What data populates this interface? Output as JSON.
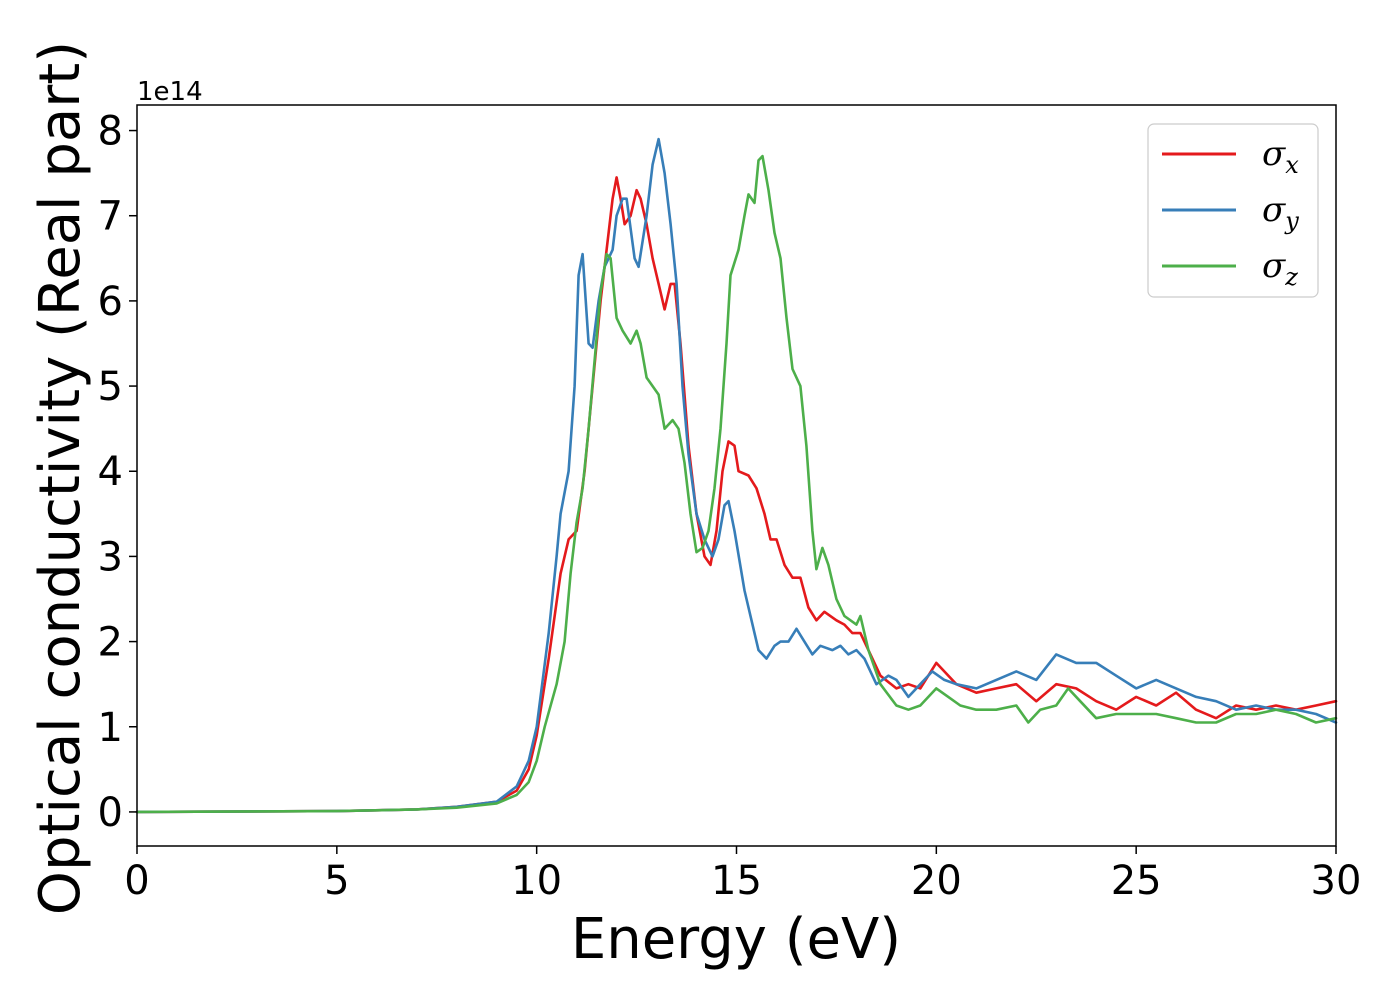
{
  "chart_data": {
    "type": "line",
    "title": "",
    "xlabel": "Energy (eV)",
    "ylabel": "Optical conductivity (Real part)",
    "y_offset_label": "1e14",
    "xlim": [
      0,
      30
    ],
    "ylim": [
      -0.4,
      8.3
    ],
    "xticks": [
      0,
      5,
      10,
      15,
      20,
      25,
      30
    ],
    "xtick_labels": [
      "0",
      "5",
      "10",
      "15",
      "20",
      "25",
      "30"
    ],
    "yticks": [
      0,
      1,
      2,
      3,
      4,
      5,
      6,
      7,
      8
    ],
    "ytick_labels": [
      "0",
      "1",
      "2",
      "3",
      "4",
      "5",
      "6",
      "7",
      "8"
    ],
    "grid": false,
    "legend_position": "top-right",
    "series": [
      {
        "name": "σx",
        "legend_symbol": "σ",
        "legend_subscript": "x",
        "color": "#e41a1c",
        "points": [
          [
            0,
            0
          ],
          [
            5,
            0.01
          ],
          [
            7,
            0.03
          ],
          [
            8,
            0.06
          ],
          [
            9,
            0.12
          ],
          [
            9.5,
            0.25
          ],
          [
            9.8,
            0.5
          ],
          [
            10,
            0.9
          ],
          [
            10.3,
            1.8
          ],
          [
            10.6,
            2.8
          ],
          [
            10.8,
            3.2
          ],
          [
            11,
            3.3
          ],
          [
            11.2,
            4.0
          ],
          [
            11.4,
            5.0
          ],
          [
            11.6,
            6.0
          ],
          [
            11.8,
            6.8
          ],
          [
            11.9,
            7.2
          ],
          [
            12,
            7.45
          ],
          [
            12.1,
            7.2
          ],
          [
            12.2,
            6.9
          ],
          [
            12.35,
            7.0
          ],
          [
            12.5,
            7.3
          ],
          [
            12.6,
            7.2
          ],
          [
            12.75,
            6.9
          ],
          [
            12.9,
            6.5
          ],
          [
            13,
            6.3
          ],
          [
            13.2,
            5.9
          ],
          [
            13.35,
            6.2
          ],
          [
            13.45,
            6.2
          ],
          [
            13.6,
            5.5
          ],
          [
            13.8,
            4.3
          ],
          [
            14,
            3.5
          ],
          [
            14.2,
            3.0
          ],
          [
            14.35,
            2.9
          ],
          [
            14.5,
            3.3
          ],
          [
            14.65,
            4.0
          ],
          [
            14.8,
            4.35
          ],
          [
            14.95,
            4.3
          ],
          [
            15.05,
            4.0
          ],
          [
            15.3,
            3.95
          ],
          [
            15.5,
            3.8
          ],
          [
            15.7,
            3.5
          ],
          [
            15.85,
            3.2
          ],
          [
            16,
            3.2
          ],
          [
            16.2,
            2.9
          ],
          [
            16.4,
            2.75
          ],
          [
            16.6,
            2.75
          ],
          [
            16.8,
            2.4
          ],
          [
            17,
            2.25
          ],
          [
            17.2,
            2.35
          ],
          [
            17.5,
            2.25
          ],
          [
            17.7,
            2.2
          ],
          [
            17.9,
            2.1
          ],
          [
            18.1,
            2.1
          ],
          [
            18.3,
            1.9
          ],
          [
            18.6,
            1.6
          ],
          [
            19,
            1.45
          ],
          [
            19.3,
            1.5
          ],
          [
            19.6,
            1.45
          ],
          [
            19.8,
            1.6
          ],
          [
            20,
            1.75
          ],
          [
            20.2,
            1.65
          ],
          [
            20.5,
            1.5
          ],
          [
            21,
            1.4
          ],
          [
            21.5,
            1.45
          ],
          [
            22,
            1.5
          ],
          [
            22.5,
            1.3
          ],
          [
            23,
            1.5
          ],
          [
            23.5,
            1.45
          ],
          [
            24,
            1.3
          ],
          [
            24.5,
            1.2
          ],
          [
            25,
            1.35
          ],
          [
            25.5,
            1.25
          ],
          [
            26,
            1.4
          ],
          [
            26.5,
            1.2
          ],
          [
            27,
            1.1
          ],
          [
            27.5,
            1.25
          ],
          [
            28,
            1.2
          ],
          [
            28.5,
            1.25
          ],
          [
            29,
            1.2
          ],
          [
            29.5,
            1.25
          ],
          [
            30,
            1.3
          ]
        ]
      },
      {
        "name": "σy",
        "legend_symbol": "σ",
        "legend_subscript": "y",
        "color": "#377eb8",
        "points": [
          [
            0,
            0
          ],
          [
            5,
            0.01
          ],
          [
            7,
            0.03
          ],
          [
            8,
            0.06
          ],
          [
            9,
            0.12
          ],
          [
            9.5,
            0.3
          ],
          [
            9.8,
            0.6
          ],
          [
            10,
            1.0
          ],
          [
            10.3,
            2.1
          ],
          [
            10.5,
            3.0
          ],
          [
            10.6,
            3.5
          ],
          [
            10.8,
            4.0
          ],
          [
            10.95,
            5.0
          ],
          [
            11.05,
            6.3
          ],
          [
            11.15,
            6.55
          ],
          [
            11.3,
            5.5
          ],
          [
            11.4,
            5.45
          ],
          [
            11.55,
            6.0
          ],
          [
            11.7,
            6.4
          ],
          [
            11.9,
            6.6
          ],
          [
            12,
            7.0
          ],
          [
            12.15,
            7.2
          ],
          [
            12.25,
            7.2
          ],
          [
            12.45,
            6.5
          ],
          [
            12.55,
            6.4
          ],
          [
            12.75,
            7.0
          ],
          [
            12.9,
            7.6
          ],
          [
            13.05,
            7.9
          ],
          [
            13.2,
            7.5
          ],
          [
            13.35,
            6.9
          ],
          [
            13.5,
            6.2
          ],
          [
            13.65,
            5.0
          ],
          [
            13.8,
            4.2
          ],
          [
            14,
            3.5
          ],
          [
            14.2,
            3.2
          ],
          [
            14.4,
            3.0
          ],
          [
            14.55,
            3.2
          ],
          [
            14.7,
            3.6
          ],
          [
            14.8,
            3.65
          ],
          [
            14.95,
            3.3
          ],
          [
            15.2,
            2.6
          ],
          [
            15.4,
            2.2
          ],
          [
            15.55,
            1.9
          ],
          [
            15.75,
            1.8
          ],
          [
            15.95,
            1.95
          ],
          [
            16.1,
            2.0
          ],
          [
            16.3,
            2.0
          ],
          [
            16.5,
            2.15
          ],
          [
            16.7,
            2.0
          ],
          [
            16.9,
            1.85
          ],
          [
            17.1,
            1.95
          ],
          [
            17.4,
            1.9
          ],
          [
            17.6,
            1.95
          ],
          [
            17.8,
            1.85
          ],
          [
            18,
            1.9
          ],
          [
            18.2,
            1.8
          ],
          [
            18.5,
            1.5
          ],
          [
            18.8,
            1.6
          ],
          [
            19,
            1.55
          ],
          [
            19.3,
            1.35
          ],
          [
            19.6,
            1.5
          ],
          [
            19.9,
            1.65
          ],
          [
            20.2,
            1.55
          ],
          [
            20.5,
            1.5
          ],
          [
            21,
            1.45
          ],
          [
            21.5,
            1.55
          ],
          [
            22,
            1.65
          ],
          [
            22.5,
            1.55
          ],
          [
            23,
            1.85
          ],
          [
            23.5,
            1.75
          ],
          [
            24,
            1.75
          ],
          [
            24.5,
            1.6
          ],
          [
            25,
            1.45
          ],
          [
            25.5,
            1.55
          ],
          [
            26,
            1.45
          ],
          [
            26.5,
            1.35
          ],
          [
            27,
            1.3
          ],
          [
            27.5,
            1.2
          ],
          [
            28,
            1.25
          ],
          [
            28.5,
            1.2
          ],
          [
            29,
            1.2
          ],
          [
            29.5,
            1.15
          ],
          [
            30,
            1.05
          ]
        ]
      },
      {
        "name": "σz",
        "legend_symbol": "σ",
        "legend_subscript": "z",
        "color": "#4daf4a",
        "points": [
          [
            0,
            0
          ],
          [
            5,
            0.01
          ],
          [
            7,
            0.03
          ],
          [
            8,
            0.05
          ],
          [
            9,
            0.1
          ],
          [
            9.5,
            0.2
          ],
          [
            9.8,
            0.35
          ],
          [
            10,
            0.6
          ],
          [
            10.2,
            1.0
          ],
          [
            10.5,
            1.5
          ],
          [
            10.7,
            2.0
          ],
          [
            10.85,
            2.8
          ],
          [
            11.0,
            3.4
          ],
          [
            11.15,
            3.8
          ],
          [
            11.3,
            4.5
          ],
          [
            11.45,
            5.3
          ],
          [
            11.6,
            6.1
          ],
          [
            11.75,
            6.55
          ],
          [
            11.85,
            6.5
          ],
          [
            12,
            5.8
          ],
          [
            12.15,
            5.65
          ],
          [
            12.35,
            5.5
          ],
          [
            12.5,
            5.65
          ],
          [
            12.6,
            5.5
          ],
          [
            12.75,
            5.1
          ],
          [
            12.9,
            5.0
          ],
          [
            13.05,
            4.9
          ],
          [
            13.2,
            4.5
          ],
          [
            13.4,
            4.6
          ],
          [
            13.55,
            4.5
          ],
          [
            13.7,
            4.1
          ],
          [
            13.85,
            3.5
          ],
          [
            14.0,
            3.05
          ],
          [
            14.15,
            3.1
          ],
          [
            14.3,
            3.3
          ],
          [
            14.45,
            3.8
          ],
          [
            14.6,
            4.5
          ],
          [
            14.75,
            5.5
          ],
          [
            14.85,
            6.3
          ],
          [
            15.05,
            6.6
          ],
          [
            15.2,
            7.0
          ],
          [
            15.3,
            7.25
          ],
          [
            15.45,
            7.15
          ],
          [
            15.55,
            7.65
          ],
          [
            15.65,
            7.7
          ],
          [
            15.8,
            7.3
          ],
          [
            15.95,
            6.8
          ],
          [
            16.1,
            6.5
          ],
          [
            16.25,
            5.8
          ],
          [
            16.4,
            5.2
          ],
          [
            16.6,
            5.0
          ],
          [
            16.75,
            4.3
          ],
          [
            16.9,
            3.3
          ],
          [
            17,
            2.85
          ],
          [
            17.15,
            3.1
          ],
          [
            17.3,
            2.9
          ],
          [
            17.5,
            2.5
          ],
          [
            17.7,
            2.3
          ],
          [
            18,
            2.2
          ],
          [
            18.1,
            2.3
          ],
          [
            18.3,
            1.9
          ],
          [
            18.6,
            1.5
          ],
          [
            19,
            1.25
          ],
          [
            19.3,
            1.2
          ],
          [
            19.6,
            1.25
          ],
          [
            20,
            1.45
          ],
          [
            20.3,
            1.35
          ],
          [
            20.6,
            1.25
          ],
          [
            21,
            1.2
          ],
          [
            21.5,
            1.2
          ],
          [
            22,
            1.25
          ],
          [
            22.3,
            1.05
          ],
          [
            22.6,
            1.2
          ],
          [
            23,
            1.25
          ],
          [
            23.3,
            1.45
          ],
          [
            23.6,
            1.3
          ],
          [
            24,
            1.1
          ],
          [
            24.5,
            1.15
          ],
          [
            25,
            1.15
          ],
          [
            25.5,
            1.15
          ],
          [
            26,
            1.1
          ],
          [
            26.5,
            1.05
          ],
          [
            27,
            1.05
          ],
          [
            27.5,
            1.15
          ],
          [
            28,
            1.15
          ],
          [
            28.5,
            1.2
          ],
          [
            29,
            1.15
          ],
          [
            29.5,
            1.05
          ],
          [
            30,
            1.1
          ]
        ]
      }
    ]
  }
}
